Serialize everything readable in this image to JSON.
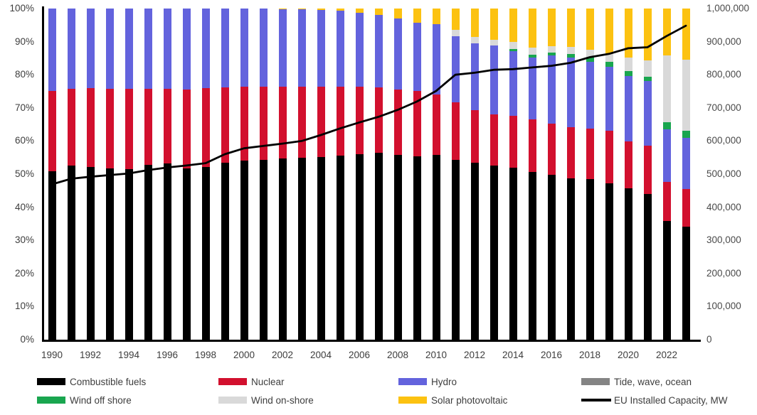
{
  "chart_data": {
    "type": "bar",
    "subtype": "stacked-100-percent-with-line-overlay",
    "title": "",
    "x": [
      1990,
      1991,
      1992,
      1993,
      1994,
      1995,
      1996,
      1997,
      1998,
      1999,
      2000,
      2001,
      2002,
      2003,
      2004,
      2005,
      2006,
      2007,
      2008,
      2009,
      2010,
      2011,
      2012,
      2013,
      2014,
      2015,
      2016,
      2017,
      2018,
      2019,
      2020,
      2021,
      2022,
      2023
    ],
    "x_tick_labels": [
      "1990",
      "1992",
      "1994",
      "1996",
      "1998",
      "2000",
      "2002",
      "2004",
      "2006",
      "2008",
      "2010",
      "2012",
      "2014",
      "2016",
      "2018",
      "2020",
      "2022"
    ],
    "left_axis": {
      "min": 0,
      "max": 100,
      "step": 10,
      "unit": "%",
      "tick_labels": [
        "0%",
        "10%",
        "20%",
        "30%",
        "40%",
        "50%",
        "60%",
        "70%",
        "80%",
        "90%",
        "100%"
      ]
    },
    "right_axis": {
      "min": 0,
      "max": 1000000,
      "step": 100000,
      "unit": "MW",
      "tick_labels": [
        "0",
        "100,000",
        "200,000",
        "300,000",
        "400,000",
        "500,000",
        "600,000",
        "700,000",
        "800,000",
        "900,000",
        "1,000,000"
      ]
    },
    "grid": false,
    "legend_position": "bottom",
    "series": [
      {
        "name": "Combustible fuels",
        "color": "#000000",
        "unit": "%",
        "values": [
          50.9,
          52.6,
          52.2,
          51.8,
          51.4,
          52.9,
          53.2,
          51.8,
          52.2,
          53.5,
          54.0,
          54.3,
          54.8,
          55.0,
          55.2,
          55.5,
          56.0,
          56.4,
          55.7,
          55.3,
          55.7,
          54.4,
          53.5,
          52.5,
          52.0,
          50.7,
          49.7,
          48.8,
          48.6,
          47.2,
          45.7,
          44.0,
          35.9,
          34.1
        ]
      },
      {
        "name": "Nuclear",
        "color": "#d2102e",
        "unit": "%",
        "values": [
          24.3,
          23.2,
          23.7,
          24.0,
          24.3,
          22.8,
          22.6,
          23.7,
          23.7,
          22.7,
          22.4,
          22.2,
          21.7,
          21.4,
          21.3,
          21.0,
          20.3,
          19.8,
          19.9,
          19.8,
          18.3,
          17.2,
          15.9,
          15.6,
          15.7,
          15.9,
          15.5,
          15.3,
          15.2,
          15.9,
          14.2,
          14.5,
          11.7,
          11.3
        ]
      },
      {
        "name": "Hydro",
        "color": "#6363dd",
        "unit": "%",
        "values": [
          24.8,
          24.2,
          24.1,
          24.2,
          24.3,
          24.3,
          24.2,
          24.5,
          24.1,
          23.8,
          23.6,
          23.5,
          23.3,
          23.3,
          23.0,
          22.8,
          22.5,
          21.8,
          21.4,
          20.6,
          21.2,
          20.1,
          20.1,
          20.8,
          19.4,
          18.7,
          20.6,
          21.0,
          20.1,
          19.4,
          19.8,
          19.6,
          15.9,
          15.6
        ]
      },
      {
        "name": "Tide, wave, ocean",
        "color": "#848484",
        "unit": "%",
        "values": [
          0,
          0,
          0,
          0,
          0,
          0,
          0,
          0,
          0,
          0,
          0,
          0,
          0,
          0,
          0,
          0,
          0,
          0,
          0,
          0,
          0,
          0,
          0,
          0,
          0,
          0,
          0,
          0,
          0,
          0,
          0,
          0,
          0,
          0
        ]
      },
      {
        "name": "Wind off shore",
        "color": "#19a64f",
        "unit": "%",
        "values": [
          0,
          0,
          0,
          0,
          0,
          0,
          0,
          0,
          0,
          0,
          0,
          0,
          0,
          0,
          0,
          0,
          0,
          0,
          0,
          0,
          0,
          0,
          0,
          0,
          0.7,
          0.7,
          0.9,
          1.1,
          1.2,
          1.4,
          1.4,
          1.4,
          2.1,
          2.1
        ]
      },
      {
        "name": "Wind on-shore",
        "color": "#d9d9d9",
        "unit": "%",
        "values": [
          0,
          0,
          0,
          0,
          0,
          0,
          0,
          0,
          0,
          0,
          0,
          0,
          0,
          0,
          0,
          0,
          0,
          0,
          0,
          0,
          0,
          1.8,
          1.9,
          1.7,
          2.1,
          2.2,
          1.9,
          2.2,
          2.4,
          2.6,
          4.2,
          4.8,
          20.2,
          21.5
        ]
      },
      {
        "name": "Solar photovoltaic",
        "color": "#fcc211",
        "unit": "%",
        "values": [
          0,
          0,
          0,
          0,
          0,
          0,
          0,
          0,
          0,
          0,
          0,
          0,
          0.2,
          0.3,
          0.5,
          0.7,
          1.2,
          2.0,
          3.0,
          4.3,
          4.8,
          6.5,
          8.6,
          9.4,
          10.1,
          11.8,
          11.4,
          11.6,
          12.5,
          13.5,
          14.7,
          15.7,
          14.2,
          15.4
        ]
      }
    ],
    "line_series": {
      "name": "EU Installed Capacity, MW",
      "color": "#000000",
      "axis": "right",
      "values": [
        469000,
        486000,
        492000,
        497000,
        502000,
        512000,
        520000,
        526000,
        533000,
        560000,
        578000,
        585000,
        592000,
        600000,
        618000,
        638000,
        656000,
        673000,
        694000,
        719000,
        751000,
        800000,
        806000,
        815000,
        817000,
        822000,
        827000,
        836000,
        853000,
        863000,
        880000,
        883000,
        917000,
        948000
      ]
    },
    "legend": [
      {
        "label": "Combustible fuels",
        "swatch": "bar",
        "color": "#000000"
      },
      {
        "label": "Nuclear",
        "swatch": "bar",
        "color": "#d2102e"
      },
      {
        "label": "Hydro",
        "swatch": "bar",
        "color": "#6363dd"
      },
      {
        "label": "Tide, wave, ocean",
        "swatch": "bar",
        "color": "#848484"
      },
      {
        "label": "Wind off shore",
        "swatch": "bar",
        "color": "#19a64f"
      },
      {
        "label": "Wind on-shore",
        "swatch": "bar",
        "color": "#d9d9d9"
      },
      {
        "label": "Solar photovoltaic",
        "swatch": "bar",
        "color": "#fcc211"
      },
      {
        "label": "EU Installed Capacity, MW",
        "swatch": "line",
        "color": "#000000"
      }
    ]
  }
}
